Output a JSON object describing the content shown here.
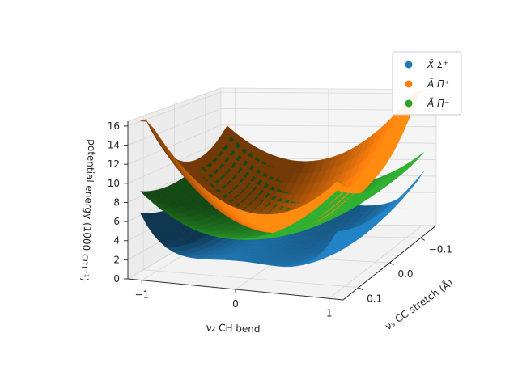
{
  "chart_data": {
    "type": "surface3d",
    "title": "",
    "xlabel": "ν₂ CH bend",
    "ylabel": "ν₃ CC stretch (Å)",
    "zlabel": "potential energy (1000 cm⁻¹)",
    "x_ticks": [
      "−1",
      "0",
      "1"
    ],
    "y_ticks": [
      "−0.1",
      "0.0",
      "0.1"
    ],
    "z_ticks": [
      "0",
      "2",
      "4",
      "6",
      "8",
      "10",
      "12",
      "14",
      "16"
    ],
    "xlim": [
      -1.15,
      1.15
    ],
    "ylim": [
      -0.15,
      0.15
    ],
    "zlim": [
      0,
      16.5
    ],
    "grid": true,
    "legend_position": "top-right",
    "series": [
      {
        "name": "X̃ Σ⁺",
        "color": "#1f77b4",
        "description_model": "double-well in bend",
        "samples": [
          {
            "x": -1,
            "y": 0,
            "z": 3.0
          },
          {
            "x": -0.5,
            "y": 0,
            "z": 0.6
          },
          {
            "x": 0,
            "y": 0,
            "z": 1.6
          },
          {
            "x": 0.5,
            "y": 0,
            "z": 0.6
          },
          {
            "x": 1,
            "y": 0,
            "z": 3.0
          }
        ]
      },
      {
        "name": "Ã Π⁺",
        "color": "#ff7f0e",
        "samples": [
          {
            "x": -1,
            "y": -0.15,
            "z": 16.0
          },
          {
            "x": -1,
            "y": 0.15,
            "z": 16.0
          },
          {
            "x": 0,
            "y": 0,
            "z": 3.3
          },
          {
            "x": 1,
            "y": -0.15,
            "z": 16.0
          },
          {
            "x": 1,
            "y": 0.15,
            "z": 16.0
          }
        ]
      },
      {
        "name": "Ã Π⁻",
        "color": "#2ca02c",
        "samples": [
          {
            "x": -1,
            "y": 0,
            "z": 8.0
          },
          {
            "x": 0,
            "y": 0,
            "z": 3.3
          },
          {
            "x": 1,
            "y": 0,
            "z": 8.0
          },
          {
            "x": 1,
            "y": -0.15,
            "z": 12.0
          }
        ]
      }
    ]
  }
}
